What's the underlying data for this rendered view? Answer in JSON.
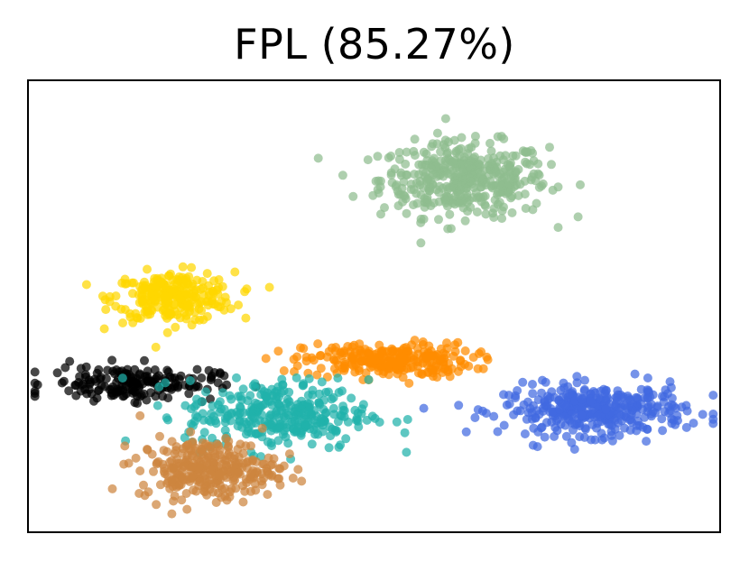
{
  "chart_data": {
    "type": "scatter",
    "title": "FPL (85.27%)",
    "xlabel": "",
    "ylabel": "",
    "xticks": "none",
    "yticks": "none",
    "grid": false,
    "legend": "none",
    "xlim": [
      0,
      100
    ],
    "ylim": [
      0,
      100
    ],
    "series": [
      {
        "color": "#8fbc8f",
        "center": [
          63,
          78
        ],
        "spread": [
          11,
          7.5
        ],
        "count": 420
      },
      {
        "color": "#ffd700",
        "center": [
          21,
          52
        ],
        "spread": [
          8,
          5
        ],
        "count": 260
      },
      {
        "color": "#ff8c00",
        "center": [
          52,
          38
        ],
        "spread": [
          11,
          3.5
        ],
        "count": 260
      },
      {
        "color": "#4169e1",
        "center": [
          82,
          27
        ],
        "spread": [
          12,
          5
        ],
        "count": 380
      },
      {
        "color": "#000000",
        "center": [
          15,
          33
        ],
        "spread": [
          11,
          3.5
        ],
        "count": 180
      },
      {
        "color": "#20b2aa",
        "center": [
          36,
          26
        ],
        "spread": [
          12,
          7
        ],
        "count": 320
      },
      {
        "color": "#cd853f",
        "center": [
          26,
          14
        ],
        "spread": [
          9,
          6
        ],
        "count": 300
      }
    ]
  }
}
